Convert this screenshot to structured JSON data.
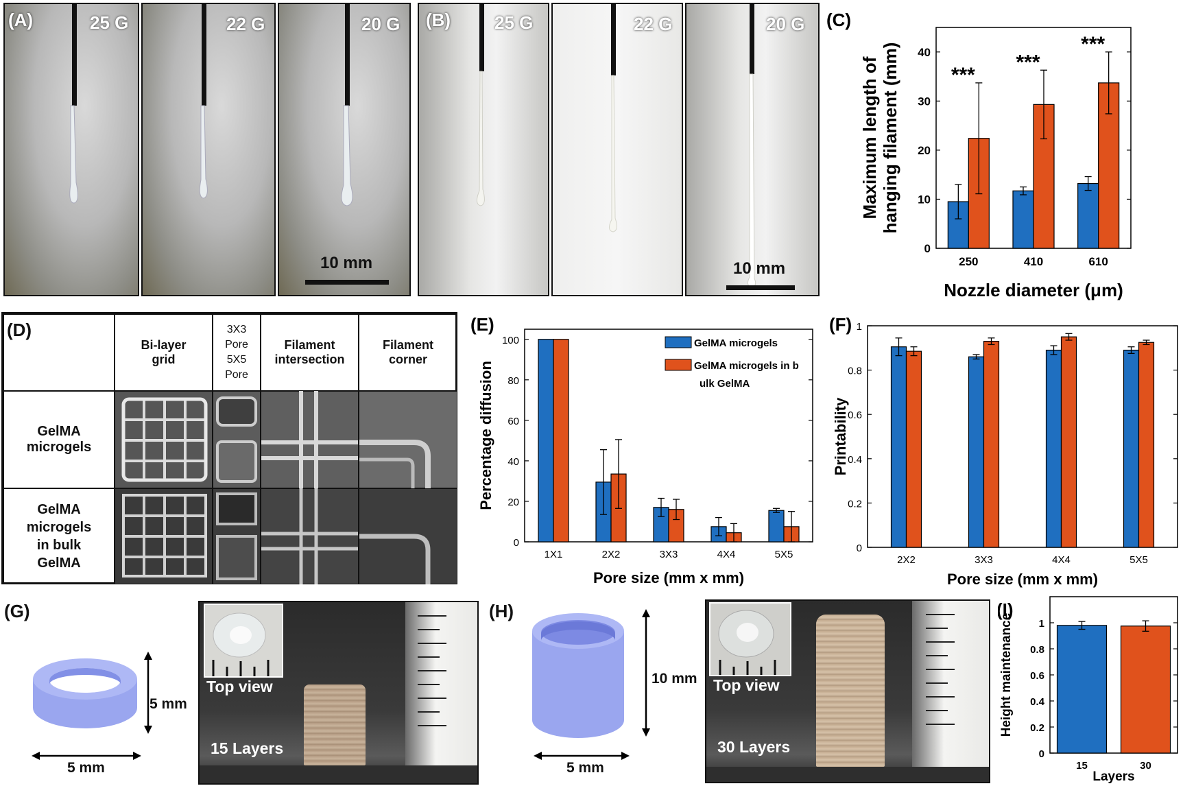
{
  "panels": {
    "A": {
      "label": "(A)",
      "gauges": [
        "25 G",
        "22 G",
        "20 G"
      ],
      "scale": "10 mm"
    },
    "B": {
      "label": "(B)",
      "gauges": [
        "25 G",
        "22 G",
        "20 G"
      ],
      "scale": "10 mm"
    },
    "D": {
      "label": "(D)",
      "col_headers": [
        "Bi-layer grid",
        "3X3 Pore 5X5 Pore",
        "Filament intersection",
        "Filament corner"
      ],
      "row_headers": [
        "GelMA microgels",
        "GelMA microgels in bulk GelMA"
      ]
    },
    "G": {
      "label": "(G)",
      "height_label": "5 mm",
      "width_label": "5 mm",
      "top_view": "Top view",
      "layers": "15 Layers"
    },
    "H": {
      "label": "(H)",
      "height_label": "10 mm",
      "width_label": "5 mm",
      "top_view": "Top view",
      "layers": "30 Layers"
    }
  },
  "colors": {
    "blue": "#1f6fc0",
    "orange": "#e0521c",
    "ring": "#9aa6ef"
  },
  "chart_data": [
    {
      "panel": "(C)",
      "type": "bar",
      "categories": [
        "250",
        "410",
        "610"
      ],
      "series": [
        {
          "values": [
            9.5,
            11.7,
            13.2
          ],
          "errors": [
            3.5,
            0.8,
            1.4
          ]
        },
        {
          "values": [
            22.4,
            29.3,
            33.7
          ],
          "errors": [
            11.3,
            7.0,
            6.3
          ]
        }
      ],
      "significance": [
        "***",
        "***",
        "***"
      ],
      "xlabel": "Nozzle diameter (μm)",
      "ylabel": "Maximum length of hanging filament (mm)",
      "ylim": [
        0,
        45
      ],
      "yticks": [
        0,
        10,
        20,
        30,
        40
      ]
    },
    {
      "panel": "(E)",
      "type": "bar",
      "categories": [
        "1X1",
        "2X2",
        "3X3",
        "4X4",
        "5X5"
      ],
      "series": [
        {
          "name": "GelMA microgels",
          "values": [
            100,
            29.5,
            17,
            7.5,
            15.5
          ],
          "errors": [
            0,
            16,
            4.5,
            4.5,
            1
          ]
        },
        {
          "name": "GelMA microgels in bulk GelMA",
          "values": [
            100,
            33.5,
            16,
            4.5,
            7.5
          ],
          "errors": [
            0,
            17,
            5,
            4.5,
            7.5
          ]
        }
      ],
      "xlabel": "Pore size (mm x mm)",
      "ylabel": "Percentage diffusion",
      "ylim": [
        0,
        105
      ],
      "yticks": [
        0,
        20,
        40,
        60,
        80,
        100
      ],
      "legend_position": "top-right"
    },
    {
      "panel": "(F)",
      "type": "bar",
      "categories": [
        "2X2",
        "3X3",
        "4X4",
        "5X5"
      ],
      "series": [
        {
          "values": [
            0.905,
            0.86,
            0.89,
            0.89
          ],
          "errors": [
            0.04,
            0.01,
            0.02,
            0.015
          ]
        },
        {
          "values": [
            0.885,
            0.93,
            0.95,
            0.925
          ],
          "errors": [
            0.02,
            0.015,
            0.015,
            0.01
          ]
        }
      ],
      "xlabel": "Pore size (mm x mm)",
      "ylabel": "Printability",
      "ylim": [
        0,
        1
      ],
      "yticks": [
        0,
        0.2,
        0.4,
        0.6,
        0.8,
        1
      ],
      "ytick_labels": [
        "0",
        "0.2",
        "0.4",
        "0.6",
        "0.8",
        "1"
      ]
    },
    {
      "panel": "(I)",
      "type": "bar",
      "categories": [
        "15",
        "30"
      ],
      "series": [
        {
          "values": [
            0.98,
            0.975
          ],
          "errors": [
            0.03,
            0.04
          ]
        }
      ],
      "xlabel": "Layers",
      "ylabel": "Height maintenance",
      "ylim": [
        0,
        1.2
      ],
      "yticks": [
        0,
        0.2,
        0.4,
        0.6,
        0.8,
        1
      ],
      "ytick_labels": [
        "0",
        "0.2",
        "0.4",
        "0.6",
        "0.8",
        "1"
      ]
    }
  ]
}
